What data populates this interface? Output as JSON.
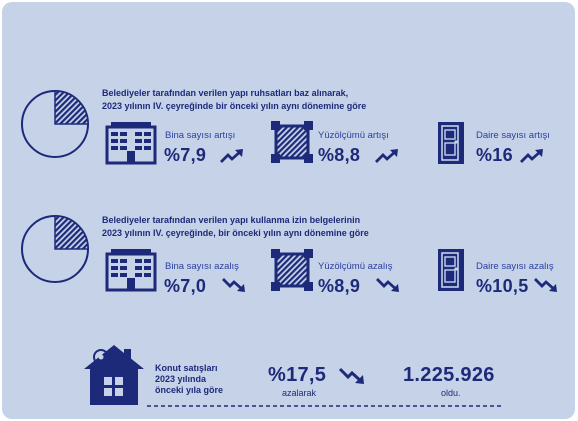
{
  "section1": {
    "heading_line1": "Belediyeler tarafından verilen yapı ruhsatları baz alınarak,",
    "heading_line2": "2023 yılının IV. çeyreğinde bir önceki yılın aynı dönemine göre",
    "pie_fraction": 0.25,
    "metrics": [
      {
        "label": "Bina sayısı artışı",
        "value": "%7,9",
        "icon": "building-icon",
        "trend": "up"
      },
      {
        "label": "Yüzölçümü artışı",
        "value": "%8,8",
        "icon": "area-square-icon",
        "trend": "up"
      },
      {
        "label": "Daire sayısı artışı",
        "value": "%16",
        "icon": "door-icon",
        "trend": "up"
      }
    ]
  },
  "section2": {
    "heading_line1": "Belediyeler tarafından verilen yapı kullanma izin belgelerinin",
    "heading_line2": "2023 yılının IV. çeyreğinde, bir önceki yılın aynı dönemine göre",
    "pie_fraction": 0.25,
    "metrics": [
      {
        "label": "Bina sayısı azalış",
        "value": "%7,0",
        "icon": "building-icon",
        "trend": "down"
      },
      {
        "label": "Yüzölçümü azalış",
        "value": "%8,9",
        "icon": "area-square-icon",
        "trend": "down"
      },
      {
        "label": "Daire sayısı azalış",
        "value": "%10,5",
        "icon": "door-icon",
        "trend": "down"
      }
    ]
  },
  "housing": {
    "text_line1": "Konut satışları",
    "text_line2": "2023 yılında",
    "text_line3": "önceki yıla göre",
    "percent_value": "%17,5",
    "percent_caption": "azalarak",
    "total_value": "1.225.926",
    "total_caption": "oldu.",
    "icon": "house-tag-icon",
    "trend": "down"
  },
  "colors": {
    "background": "#c6d2e8",
    "navy": "#1d2a7a",
    "label_blue": "#2a3fa0"
  }
}
